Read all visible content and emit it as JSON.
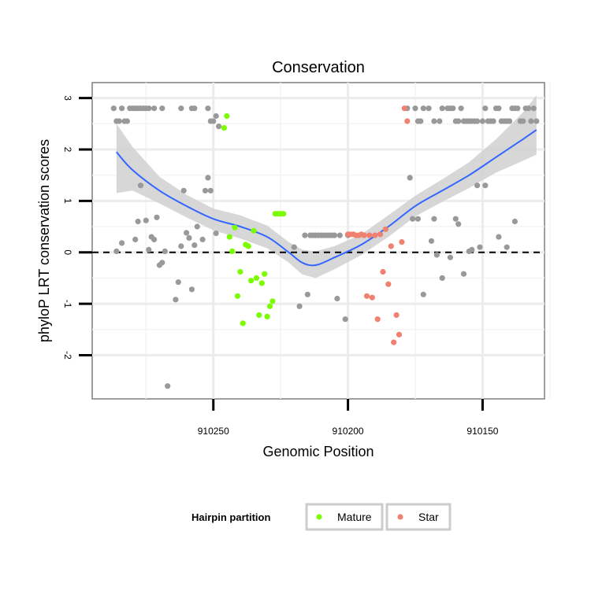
{
  "chart_data": {
    "type": "scatter",
    "title": "Conservation",
    "xlabel": "Genomic Position",
    "ylabel": "phyloP LRT conservation scores",
    "x_reversed": true,
    "xlim": [
      910295,
      910127
    ],
    "ylim": [
      -2.85,
      3.3
    ],
    "x_ticks": [
      910250,
      910200,
      910150
    ],
    "x_tick_labels": [
      "910250",
      "910200",
      "910150"
    ],
    "y_ticks": [
      -2,
      -1,
      0,
      1,
      2,
      3
    ],
    "y_tick_labels": [
      "-2",
      "-1",
      "0",
      "1",
      "2",
      "3"
    ],
    "reference_line": {
      "y": 0,
      "style": "dashed"
    },
    "legend": {
      "title": "Hairpin partition",
      "position": "bottom",
      "entries": [
        {
          "label": "Mature",
          "color": "#7cfc00"
        },
        {
          "label": "Star",
          "color": "#f08070"
        }
      ]
    },
    "colors": {
      "other": "#999999",
      "mature": "#7cfc00",
      "star": "#f08070",
      "smooth": "#3366ff",
      "band": "#d3d3d3"
    },
    "series": [
      {
        "name": "Other",
        "points": [
          [
            910287,
            2.8
          ],
          [
            910286,
            2.55
          ],
          [
            910285,
            2.55
          ],
          [
            910284,
            2.8
          ],
          [
            910283,
            2.55
          ],
          [
            910282,
            2.55
          ],
          [
            910281,
            2.8
          ],
          [
            910280,
            2.8
          ],
          [
            910279,
            2.8
          ],
          [
            910278,
            2.8
          ],
          [
            910277,
            2.8
          ],
          [
            910276,
            2.8
          ],
          [
            910275,
            2.8
          ],
          [
            910274,
            2.8
          ],
          [
            910272,
            2.8
          ],
          [
            910269,
            2.8
          ],
          [
            910262,
            2.8
          ],
          [
            910258,
            2.8
          ],
          [
            910257,
            2.8
          ],
          [
            910252,
            2.8
          ],
          [
            910251,
            2.55
          ],
          [
            910250,
            2.55
          ],
          [
            910249,
            2.65
          ],
          [
            910248,
            2.45
          ],
          [
            910286,
            0.02
          ],
          [
            910284,
            0.18
          ],
          [
            910279,
            0.25
          ],
          [
            910278,
            0.6
          ],
          [
            910277,
            1.3
          ],
          [
            910275,
            0.62
          ],
          [
            910274,
            0.05
          ],
          [
            910273,
            0.3
          ],
          [
            910272,
            0.25
          ],
          [
            910271,
            0.68
          ],
          [
            910270,
            -0.25
          ],
          [
            910269,
            -0.2
          ],
          [
            910268,
            0.02
          ],
          [
            910267,
            -2.6
          ],
          [
            910264,
            -0.92
          ],
          [
            910263,
            -0.58
          ],
          [
            910262,
            0.12
          ],
          [
            910261,
            1.2
          ],
          [
            910260,
            0.38
          ],
          [
            910259,
            0.28
          ],
          [
            910258,
            -0.72
          ],
          [
            910257,
            0.14
          ],
          [
            910256,
            0.5
          ],
          [
            910254,
            0.25
          ],
          [
            910253,
            1.2
          ],
          [
            910252,
            1.45
          ],
          [
            910251,
            1.2
          ],
          [
            910249,
            0.37
          ],
          [
            910220,
            0.1
          ],
          [
            910218,
            -1.05
          ],
          [
            910216,
            0.33
          ],
          [
            910215,
            -0.82
          ],
          [
            910214,
            0.33
          ],
          [
            910213,
            0.33
          ],
          [
            910212,
            0.33
          ],
          [
            910211,
            0.33
          ],
          [
            910210,
            0.33
          ],
          [
            910209,
            0.33
          ],
          [
            910208,
            0.33
          ],
          [
            910207,
            0.33
          ],
          [
            910206,
            0.33
          ],
          [
            910205,
            0.33
          ],
          [
            910204,
            -0.9
          ],
          [
            910203,
            0.33
          ],
          [
            910201,
            -1.3
          ],
          [
            910200,
            0.33
          ],
          [
            910178,
            2.8
          ],
          [
            910175,
            2.8
          ],
          [
            910174,
            2.55
          ],
          [
            910173,
            2.55
          ],
          [
            910172,
            2.8
          ],
          [
            910170,
            2.8
          ],
          [
            910168,
            2.55
          ],
          [
            910166,
            2.55
          ],
          [
            910165,
            2.8
          ],
          [
            910163,
            2.8
          ],
          [
            910162,
            2.8
          ],
          [
            910161,
            2.8
          ],
          [
            910160,
            2.55
          ],
          [
            910159,
            2.55
          ],
          [
            910158,
            2.8
          ],
          [
            910157,
            2.55
          ],
          [
            910156,
            2.55
          ],
          [
            910155,
            2.55
          ],
          [
            910154,
            2.55
          ],
          [
            910153,
            2.55
          ],
          [
            910152,
            2.55
          ],
          [
            910150,
            2.55
          ],
          [
            910149,
            2.8
          ],
          [
            910148,
            2.55
          ],
          [
            910147,
            2.55
          ],
          [
            910146,
            2.55
          ],
          [
            910145,
            2.8
          ],
          [
            910144,
            2.8
          ],
          [
            910143,
            2.55
          ],
          [
            910142,
            2.55
          ],
          [
            910141,
            2.55
          ],
          [
            910140,
            2.55
          ],
          [
            910139,
            2.8
          ],
          [
            910138,
            2.8
          ],
          [
            910137,
            2.8
          ],
          [
            910136,
            2.55
          ],
          [
            910135,
            2.55
          ],
          [
            910134,
            2.8
          ],
          [
            910133,
            2.8
          ],
          [
            910132,
            2.55
          ],
          [
            910131,
            2.8
          ],
          [
            910130,
            2.55
          ],
          [
            910177,
            1.45
          ],
          [
            910176,
            0.65
          ],
          [
            910174,
            0.65
          ],
          [
            910172,
            -0.82
          ],
          [
            910169,
            0.22
          ],
          [
            910168,
            0.65
          ],
          [
            910167,
            -0.05
          ],
          [
            910165,
            -0.5
          ],
          [
            910162,
            -0.1
          ],
          [
            910160,
            0.65
          ],
          [
            910159,
            0.55
          ],
          [
            910157,
            -0.42
          ],
          [
            910155,
            0.02
          ],
          [
            910154,
            0.05
          ],
          [
            910152,
            1.3
          ],
          [
            910151,
            0.1
          ],
          [
            910149,
            1.3
          ],
          [
            910144,
            0.3
          ],
          [
            910141,
            0.1
          ],
          [
            910138,
            0.6
          ]
        ]
      },
      {
        "name": "Mature",
        "points": [
          [
            910246,
            2.42
          ],
          [
            910245,
            2.65
          ],
          [
            910244,
            0.3
          ],
          [
            910243,
            0.02
          ],
          [
            910242,
            0.48
          ],
          [
            910241,
            -0.85
          ],
          [
            910240,
            -0.38
          ],
          [
            910239,
            -1.38
          ],
          [
            910238,
            0.15
          ],
          [
            910237,
            0.12
          ],
          [
            910236,
            -0.55
          ],
          [
            910235,
            0.42
          ],
          [
            910234,
            -0.5
          ],
          [
            910233,
            -1.22
          ],
          [
            910232,
            -0.6
          ],
          [
            910231,
            -0.42
          ],
          [
            910230,
            -1.25
          ],
          [
            910229,
            -1.05
          ],
          [
            910228,
            -0.95
          ],
          [
            910227,
            0.75
          ],
          [
            910226,
            0.75
          ],
          [
            910225,
            0.75
          ],
          [
            910224,
            0.75
          ]
        ]
      },
      {
        "name": "Star",
        "points": [
          [
            910200,
            0.35
          ],
          [
            910199,
            0.35
          ],
          [
            910198,
            0.35
          ],
          [
            910197,
            0.33
          ],
          [
            910196,
            0.33
          ],
          [
            910195,
            0.35
          ],
          [
            910194,
            0.33
          ],
          [
            910193,
            -0.85
          ],
          [
            910192,
            0.33
          ],
          [
            910191,
            -0.88
          ],
          [
            910190,
            0.33
          ],
          [
            910189,
            -1.3
          ],
          [
            910188,
            0.35
          ],
          [
            910187,
            -0.38
          ],
          [
            910186,
            0.45
          ],
          [
            910185,
            -0.62
          ],
          [
            910184,
            0.12
          ],
          [
            910183,
            -1.75
          ],
          [
            910182,
            -1.22
          ],
          [
            910181,
            -1.6
          ],
          [
            910180,
            0.2
          ],
          [
            910179,
            2.8
          ],
          [
            910178,
            2.55
          ]
        ]
      }
    ],
    "smooth_line": [
      [
        910286,
        1.95
      ],
      [
        910280,
        1.6
      ],
      [
        910270,
        1.2
      ],
      [
        910260,
        0.9
      ],
      [
        910250,
        0.65
      ],
      [
        910240,
        0.5
      ],
      [
        910230,
        0.3
      ],
      [
        910222,
        0.0
      ],
      [
        910217,
        -0.2
      ],
      [
        910212,
        -0.25
      ],
      [
        910205,
        -0.1
      ],
      [
        910195,
        0.15
      ],
      [
        910185,
        0.5
      ],
      [
        910175,
        0.9
      ],
      [
        910165,
        1.2
      ],
      [
        910155,
        1.5
      ],
      [
        910145,
        1.85
      ],
      [
        910135,
        2.2
      ],
      [
        910130,
        2.38
      ]
    ],
    "confidence_band": [
      {
        "x": 910286,
        "lo": 1.15,
        "hi": 2.5
      },
      {
        "x": 910280,
        "lo": 1.2,
        "hi": 2.05
      },
      {
        "x": 910270,
        "lo": 0.95,
        "hi": 1.47
      },
      {
        "x": 910260,
        "lo": 0.68,
        "hi": 1.12
      },
      {
        "x": 910250,
        "lo": 0.43,
        "hi": 0.85
      },
      {
        "x": 910240,
        "lo": 0.27,
        "hi": 0.72
      },
      {
        "x": 910230,
        "lo": 0.08,
        "hi": 0.52
      },
      {
        "x": 910222,
        "lo": -0.2,
        "hi": 0.2
      },
      {
        "x": 910217,
        "lo": -0.43,
        "hi": 0.05
      },
      {
        "x": 910212,
        "lo": -0.5,
        "hi": 0.02
      },
      {
        "x": 910205,
        "lo": -0.33,
        "hi": 0.12
      },
      {
        "x": 910195,
        "lo": -0.05,
        "hi": 0.35
      },
      {
        "x": 910185,
        "lo": 0.3,
        "hi": 0.72
      },
      {
        "x": 910175,
        "lo": 0.7,
        "hi": 1.1
      },
      {
        "x": 910165,
        "lo": 0.98,
        "hi": 1.42
      },
      {
        "x": 910155,
        "lo": 1.25,
        "hi": 1.75
      },
      {
        "x": 910145,
        "lo": 1.55,
        "hi": 2.2
      },
      {
        "x": 910135,
        "lo": 1.78,
        "hi": 2.72
      },
      {
        "x": 910130,
        "lo": 1.9,
        "hi": 3.05
      }
    ]
  }
}
